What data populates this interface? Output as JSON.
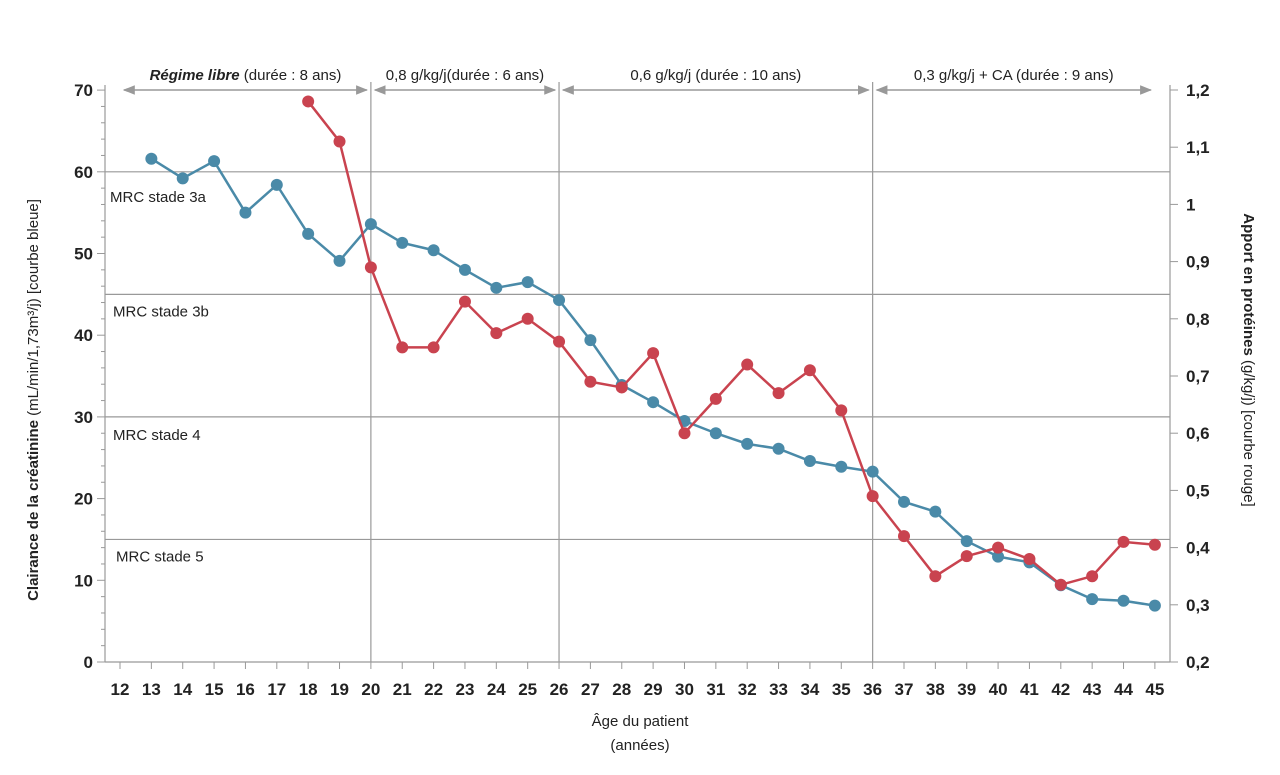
{
  "chart_data": {
    "type": "line",
    "x": [
      12,
      13,
      14,
      15,
      16,
      17,
      18,
      19,
      20,
      21,
      22,
      23,
      24,
      25,
      26,
      27,
      28,
      29,
      30,
      31,
      32,
      33,
      34,
      35,
      36,
      37,
      38,
      39,
      40,
      41,
      42,
      43,
      44,
      45
    ],
    "xlabel_line1": "Âge du patient",
    "xlabel_line2": "(années)",
    "ylabel_left_bold": "Clairance de la créatinine",
    "ylabel_left_rest": " (mL/min/1,73m³/j) [courbe bleue]",
    "ylabel_right_bold": "Apport en protéines",
    "ylabel_right_rest": " (g/kg/j) [courbe rouge]",
    "ylim_left": [
      0,
      70
    ],
    "ylim_right": [
      0.2,
      1.2
    ],
    "yticks_left": [
      "0",
      "10",
      "20",
      "30",
      "40",
      "50",
      "60",
      "70"
    ],
    "yticks_right": [
      "0,2",
      "0,3",
      "0,4",
      "0,5",
      "0,6",
      "0,7",
      "0,8",
      "0,9",
      "1",
      "1,1",
      "1,2"
    ],
    "series": [
      {
        "name": "Clairance de la créatinine",
        "axis": "left",
        "color": "#4a8aa8",
        "x": [
          13,
          14,
          15,
          16,
          17,
          18,
          19,
          20,
          21,
          22,
          23,
          24,
          25,
          26,
          27,
          28,
          29,
          30,
          31,
          32,
          33,
          34,
          35,
          36,
          37,
          38,
          39,
          40,
          41,
          42,
          43,
          44,
          45
        ],
        "values": [
          61.6,
          59.2,
          61.3,
          55.0,
          58.4,
          52.4,
          49.1,
          53.6,
          51.3,
          50.4,
          48.0,
          45.8,
          46.5,
          44.3,
          39.4,
          33.9,
          31.8,
          29.5,
          28.0,
          26.7,
          26.1,
          24.6,
          23.9,
          23.3,
          19.6,
          18.4,
          14.8,
          12.9,
          12.2,
          9.4,
          7.7,
          7.5,
          6.9
        ]
      },
      {
        "name": "Apport en protéines",
        "axis": "right",
        "color": "#c9434f",
        "x": [
          18,
          19,
          20,
          21,
          22,
          23,
          24,
          25,
          26,
          27,
          28,
          29,
          30,
          31,
          32,
          33,
          34,
          35,
          36,
          37,
          38,
          39,
          40,
          41,
          42,
          43,
          44,
          45
        ],
        "values": [
          1.18,
          1.11,
          0.89,
          0.75,
          0.75,
          0.83,
          0.775,
          0.8,
          0.76,
          0.69,
          0.68,
          0.74,
          0.6,
          0.66,
          0.72,
          0.67,
          0.71,
          0.64,
          0.49,
          0.42,
          0.35,
          0.385,
          0.4,
          0.38,
          0.335,
          0.35,
          0.41,
          0.405
        ]
      }
    ],
    "stages": [
      {
        "label": "MRC stade 3a",
        "threshold": 60
      },
      {
        "label": "MRC stade 3b",
        "threshold": 45
      },
      {
        "label": "MRC stade 4",
        "threshold": 30
      },
      {
        "label": "MRC stade 5",
        "threshold": 15
      }
    ],
    "phases": [
      {
        "bold": "Régime libre",
        "rest": " (durée : 8 ans)",
        "from": 12,
        "to": 20
      },
      {
        "bold": "",
        "rest": "0,8 g/kg/j(durée : 6 ans)",
        "from": 20,
        "to": 26
      },
      {
        "bold": "",
        "rest": "0,6 g/kg/j (durée : 10 ans)",
        "from": 26,
        "to": 36
      },
      {
        "bold": "",
        "rest": "0,3 g/kg/j + CA (durée : 9 ans)",
        "from": 36,
        "to": 45
      }
    ]
  }
}
